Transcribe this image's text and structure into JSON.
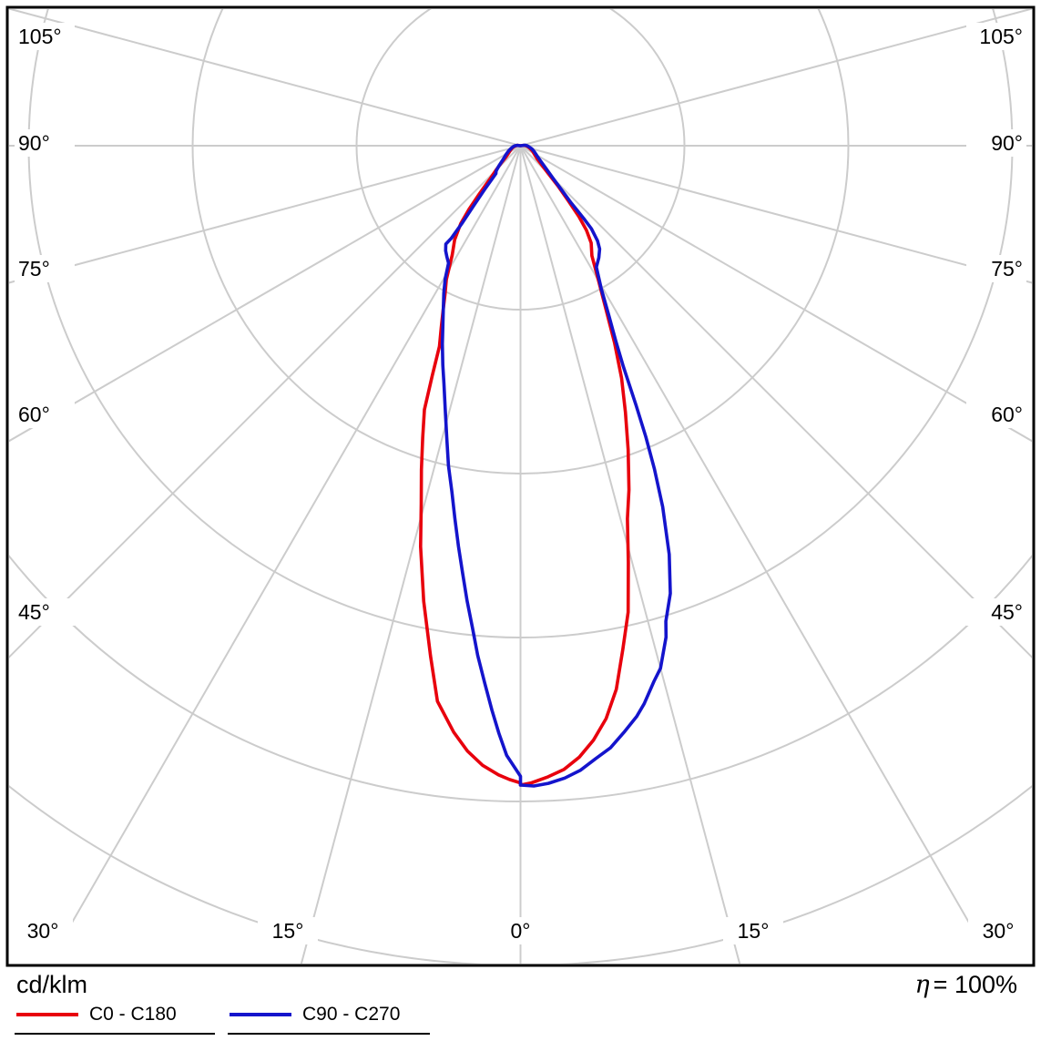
{
  "chart_data": {
    "type": "polar",
    "description": "Photometric polar luminous intensity distribution diagram (luminaire light distribution curve)",
    "units_label": "cd/klm",
    "efficiency": {
      "symbol": "η",
      "text": "= 100%"
    },
    "angular_tick_step_deg": 15,
    "angular_range_deg": [
      -105,
      105
    ],
    "angle_labels": {
      "left": [
        "105°",
        "90°",
        "75°",
        "60°",
        "45°"
      ],
      "right": [
        "105°",
        "90°",
        "75°",
        "60°",
        "45°"
      ],
      "bottom": [
        "30°",
        "15°",
        "0°",
        "15°",
        "30°"
      ]
    },
    "radial_ticks_cdklm": [
      150,
      300,
      450,
      600,
      750
    ],
    "radial_tick_labels_visible": false,
    "grid_color": "#cccccc",
    "series": [
      {
        "name": "C0 - C180",
        "color": "#e8000d",
        "points_right_gamma_value": [
          [
            105,
            0
          ],
          [
            97,
            3
          ],
          [
            90,
            5
          ],
          [
            82,
            7
          ],
          [
            74,
            9
          ],
          [
            66,
            12
          ],
          [
            58,
            15
          ],
          [
            52,
            19
          ],
          [
            48,
            26
          ],
          [
            45,
            36
          ],
          [
            43,
            50
          ],
          [
            41,
            66
          ],
          [
            39.5,
            84
          ],
          [
            38,
            98
          ],
          [
            36,
            110
          ],
          [
            33,
            120
          ],
          [
            30,
            143
          ],
          [
            27.5,
            170
          ],
          [
            25.5,
            200
          ],
          [
            23.5,
            232
          ],
          [
            21.5,
            262
          ],
          [
            19.5,
            295
          ],
          [
            17.5,
            330
          ],
          [
            16,
            355
          ],
          [
            14.5,
            394
          ],
          [
            13,
            438
          ],
          [
            11.5,
            470
          ],
          [
            10,
            505
          ],
          [
            8.5,
            530
          ],
          [
            7,
            548
          ],
          [
            5.5,
            562
          ],
          [
            4,
            572
          ],
          [
            2.5,
            578
          ],
          [
            1,
            583
          ],
          [
            0,
            585
          ]
        ],
        "points_left_gamma_value": [
          [
            105,
            0
          ],
          [
            97,
            3
          ],
          [
            90,
            4
          ],
          [
            82,
            6
          ],
          [
            74,
            8
          ],
          [
            66,
            10
          ],
          [
            58,
            13
          ],
          [
            52,
            17
          ],
          [
            48,
            24
          ],
          [
            45,
            32
          ],
          [
            42.5,
            42
          ],
          [
            40.5,
            58
          ],
          [
            39,
            75
          ],
          [
            37.5,
            90
          ],
          [
            35,
            105
          ],
          [
            32,
            118
          ],
          [
            29,
            140
          ],
          [
            27,
            152
          ],
          [
            25,
            168
          ],
          [
            23.5,
            182
          ],
          [
            22,
            198
          ],
          [
            21,
            225
          ],
          [
            20,
            257
          ],
          [
            18.5,
            282
          ],
          [
            17,
            310
          ],
          [
            15.5,
            340
          ],
          [
            14,
            378
          ],
          [
            12,
            426
          ],
          [
            10,
            474
          ],
          [
            8.5,
            514
          ],
          [
            6.5,
            540
          ],
          [
            5,
            556
          ],
          [
            3.5,
            568
          ],
          [
            2,
            576
          ],
          [
            1,
            580
          ],
          [
            0,
            583
          ]
        ]
      },
      {
        "name": "C90 - C270",
        "color": "#1414cc",
        "points_right_gamma_value": [
          [
            105,
            0
          ],
          [
            97,
            4
          ],
          [
            90,
            6
          ],
          [
            82,
            8
          ],
          [
            74,
            11
          ],
          [
            66,
            14
          ],
          [
            58,
            18
          ],
          [
            52,
            24
          ],
          [
            48,
            32
          ],
          [
            45,
            42
          ],
          [
            43,
            55
          ],
          [
            41.5,
            70
          ],
          [
            41,
            88
          ],
          [
            40.5,
            100
          ],
          [
            39,
            112
          ],
          [
            37.5,
            119
          ],
          [
            35,
            125
          ],
          [
            32,
            131
          ],
          [
            29.5,
            150
          ],
          [
            27.5,
            175
          ],
          [
            26,
            199
          ],
          [
            25,
            222
          ],
          [
            24,
            260
          ],
          [
            23.3,
            290
          ],
          [
            22.5,
            320
          ],
          [
            21.5,
            355
          ],
          [
            20,
            398
          ],
          [
            18.5,
            432
          ],
          [
            17,
            455
          ],
          [
            16.5,
            469
          ],
          [
            15,
            495
          ],
          [
            14,
            505
          ],
          [
            12.5,
            523
          ],
          [
            11.5,
            533
          ],
          [
            10,
            545
          ],
          [
            8.5,
            557
          ],
          [
            7,
            565
          ],
          [
            5.5,
            574
          ],
          [
            4,
            580
          ],
          [
            2.5,
            584
          ],
          [
            1.2,
            586
          ],
          [
            0,
            585
          ]
        ],
        "points_left_gamma_value": [
          [
            105,
            0
          ],
          [
            97,
            3
          ],
          [
            90,
            5
          ],
          [
            82,
            7
          ],
          [
            74,
            9
          ],
          [
            66,
            12
          ],
          [
            58,
            16
          ],
          [
            52,
            20
          ],
          [
            47,
            27
          ],
          [
            44,
            32
          ],
          [
            41.5,
            34
          ],
          [
            39.5,
            50
          ],
          [
            38,
            70
          ],
          [
            37,
            88
          ],
          [
            36.8,
            106
          ],
          [
            37.2,
            113
          ],
          [
            35.5,
            118
          ],
          [
            33.5,
            122
          ],
          [
            31.5,
            126
          ],
          [
            29.5,
            140
          ],
          [
            27.5,
            152
          ],
          [
            25.5,
            164
          ],
          [
            23.5,
            178
          ],
          [
            21.5,
            195
          ],
          [
            19.5,
            213
          ],
          [
            17.9,
            228
          ],
          [
            16,
            250
          ],
          [
            14.2,
            275
          ],
          [
            12.7,
            300
          ],
          [
            11.2,
            323
          ],
          [
            10,
            346
          ],
          [
            8.8,
            371
          ],
          [
            7.7,
            395
          ],
          [
            6.7,
            419
          ],
          [
            5.7,
            443
          ],
          [
            4.8,
            468
          ],
          [
            3.8,
            493
          ],
          [
            2.9,
            517
          ],
          [
            2.1,
            538
          ],
          [
            1.3,
            558
          ],
          [
            0.6,
            568
          ],
          [
            0,
            577
          ]
        ]
      }
    ]
  }
}
